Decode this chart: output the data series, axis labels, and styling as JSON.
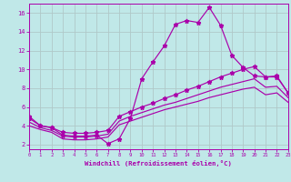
{
  "xlabel": "Windchill (Refroidissement éolien,°C)",
  "bg_color": "#c0e8e8",
  "grid_color": "#b0c8c8",
  "line_color": "#aa00aa",
  "x_ticks": [
    0,
    1,
    2,
    3,
    4,
    5,
    6,
    7,
    8,
    9,
    10,
    11,
    12,
    13,
    14,
    15,
    16,
    17,
    18,
    19,
    20,
    21,
    22,
    23
  ],
  "y_ticks": [
    2,
    4,
    6,
    8,
    10,
    12,
    14,
    16
  ],
  "xlim": [
    0,
    23
  ],
  "ylim": [
    1.5,
    17.0
  ],
  "line_zigzag_x": [
    0,
    1,
    2,
    3,
    4,
    5,
    6,
    7,
    8,
    9,
    10,
    11,
    12,
    13,
    14,
    15,
    16,
    17,
    18,
    19,
    20,
    21,
    22,
    23
  ],
  "line_zigzag_y": [
    5.0,
    4.0,
    3.8,
    3.0,
    2.9,
    2.9,
    3.0,
    2.1,
    2.6,
    4.8,
    9.0,
    10.8,
    12.5,
    14.8,
    15.2,
    15.0,
    16.6,
    14.7,
    11.5,
    10.2,
    9.3,
    9.2,
    9.2,
    7.5
  ],
  "line_top_x": [
    0,
    1,
    2,
    3,
    4,
    5,
    6,
    7,
    8,
    9,
    10,
    11,
    12,
    13,
    14,
    15,
    16,
    17,
    18,
    19,
    20,
    21,
    22,
    23
  ],
  "line_top_y": [
    4.8,
    4.0,
    3.8,
    3.3,
    3.2,
    3.2,
    3.3,
    3.5,
    5.0,
    5.5,
    6.0,
    6.4,
    6.9,
    7.3,
    7.8,
    8.2,
    8.7,
    9.2,
    9.6,
    10.0,
    10.3,
    9.2,
    9.3,
    7.5
  ],
  "line_mid_x": [
    0,
    1,
    2,
    3,
    4,
    5,
    6,
    7,
    8,
    9,
    10,
    11,
    12,
    13,
    14,
    15,
    16,
    17,
    18,
    19,
    20,
    21,
    22,
    23
  ],
  "line_mid_y": [
    4.4,
    3.8,
    3.5,
    2.9,
    2.8,
    2.8,
    2.9,
    3.1,
    4.5,
    5.0,
    5.4,
    5.8,
    6.2,
    6.5,
    6.9,
    7.3,
    7.7,
    8.1,
    8.4,
    8.7,
    9.0,
    8.1,
    8.2,
    7.0
  ],
  "line_bot_x": [
    0,
    1,
    2,
    3,
    4,
    5,
    6,
    7,
    8,
    9,
    10,
    11,
    12,
    13,
    14,
    15,
    16,
    17,
    18,
    19,
    20,
    21,
    22,
    23
  ],
  "line_bot_y": [
    4.0,
    3.6,
    3.3,
    2.6,
    2.5,
    2.5,
    2.6,
    2.8,
    4.1,
    4.5,
    4.9,
    5.3,
    5.7,
    6.0,
    6.3,
    6.6,
    7.0,
    7.3,
    7.6,
    7.9,
    8.1,
    7.3,
    7.5,
    6.5
  ]
}
